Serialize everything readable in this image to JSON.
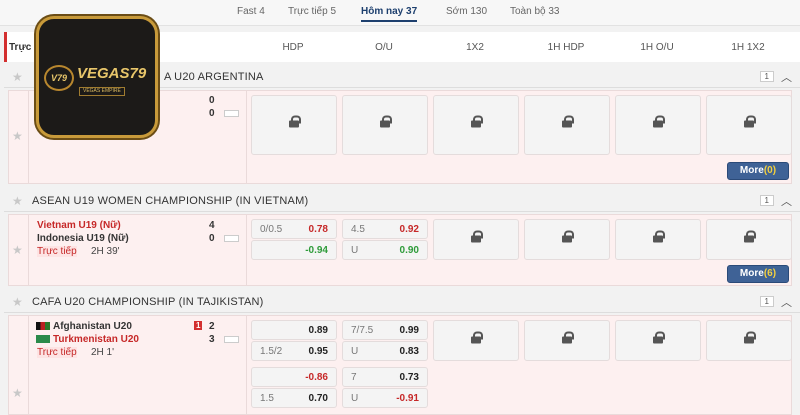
{
  "tabs": [
    {
      "label": "Fast 4"
    },
    {
      "label": "Trực tiếp 5"
    },
    {
      "label": "Hôm nay 37",
      "active": true
    },
    {
      "label": "Sớm 130"
    },
    {
      "label": "Toàn bộ 33"
    }
  ],
  "header": {
    "first": "Trực",
    "columns": [
      "HDP",
      "O/U",
      "1X2",
      "1H HDP",
      "1H O/U",
      "1H 1X2"
    ]
  },
  "logo": {
    "text": "VEGAS79",
    "sub": "VEGAS EMPIRE",
    "mark": "V79"
  },
  "leagues": [
    {
      "name": "A U20 ARGENTINA",
      "count": "1",
      "more": "More",
      "more_count": "(0)",
      "match": {
        "score_home": "0",
        "score_away": "0"
      }
    },
    {
      "name": "ASEAN U19 WOMEN CHAMPIONSHIP (IN VIETNAM)",
      "count": "1",
      "more": "More",
      "more_count": "(6)",
      "match": {
        "home": "Vietnam U19 (Nữ)",
        "away": "Indonesia U19 (Nữ)",
        "score_home": "4",
        "score_away": "0",
        "status": "Trực tiếp",
        "time": "2H 39'",
        "hdp": [
          {
            "line": "0/0.5",
            "odds": "0.78"
          },
          {
            "line": "",
            "odds": "-0.94"
          }
        ],
        "ou": [
          {
            "line": "4.5",
            "odds": "0.92"
          },
          {
            "line": "U",
            "odds": "0.90"
          }
        ]
      }
    },
    {
      "name": "CAFA U20 CHAMPIONSHIP (IN TAJIKISTAN)",
      "count": "1",
      "match": {
        "home": "Afghanistan U20",
        "away": "Turkmenistan U20",
        "red_card": "1",
        "score_home": "2",
        "score_away": "3",
        "status": "Trực tiếp",
        "time": "2H 1'",
        "hdp": [
          {
            "line": "",
            "odds": "0.89"
          },
          {
            "line": "1.5/2",
            "odds": "0.95"
          },
          {
            "line": "",
            "odds": "-0.86"
          },
          {
            "line": "1.5",
            "odds": "0.70"
          }
        ],
        "ou": [
          {
            "line": "7/7.5",
            "odds": "0.99"
          },
          {
            "line": "U",
            "odds": "0.83"
          },
          {
            "line": "7",
            "odds": "0.73"
          },
          {
            "line": "U",
            "odds": "-0.91"
          }
        ]
      }
    }
  ]
}
